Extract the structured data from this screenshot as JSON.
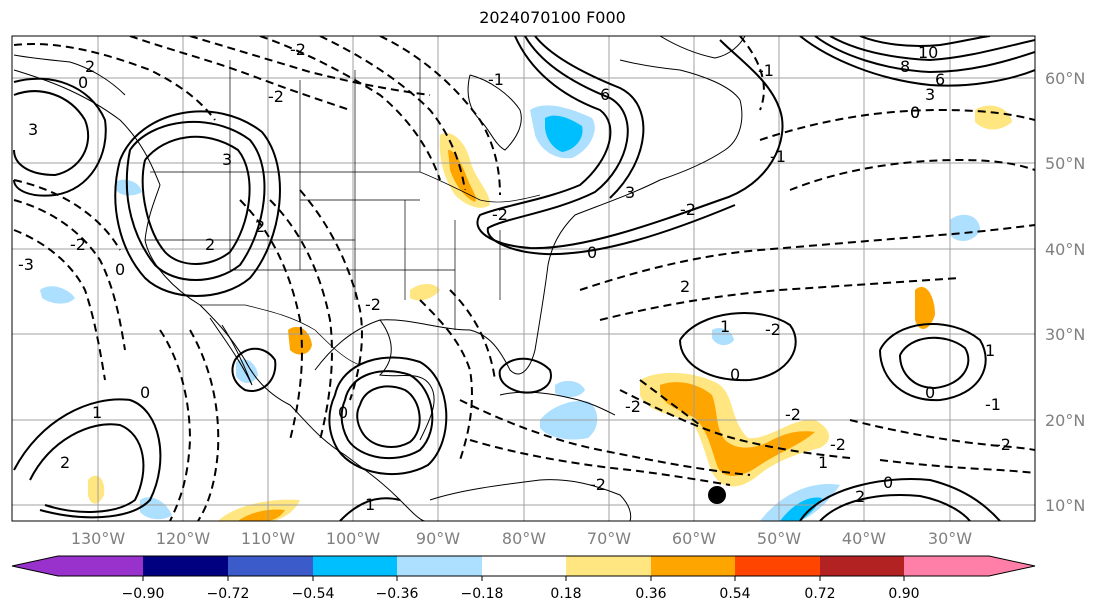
{
  "title": "2024070100 F000",
  "colors": {
    "land_border": "#000000",
    "gridline": "#a0a0a0",
    "axis_label": "#808080"
  },
  "lat_labels": [
    "60°N",
    "50°N",
    "40°N",
    "30°N",
    "20°N",
    "10°N"
  ],
  "lon_labels": [
    "130°W",
    "120°W",
    "110°W",
    "100°W",
    "90°W",
    "80°W",
    "70°W",
    "60°W",
    "50°W",
    "40°W",
    "30°W"
  ],
  "colorbar": {
    "colors": [
      "#9932CC",
      "#000080",
      "#3A5BC9",
      "#00BFFF",
      "#ADDFFF",
      "#FFFFFF",
      "#FFE680",
      "#FFA500",
      "#FF4500",
      "#B22222",
      "#FF7FA8"
    ],
    "tick_labels": [
      "−0.90",
      "−0.72",
      "−0.54",
      "−0.36",
      "−0.18",
      "0.18",
      "0.36",
      "0.54",
      "0.72",
      "0.90"
    ]
  },
  "contour_labels": [
    "2",
    "0",
    "-2",
    "3",
    "6",
    "10",
    "8",
    "6",
    "3",
    "0",
    "-2",
    "3",
    "2",
    "-3",
    "0",
    "-2",
    "1",
    "2",
    "-2",
    "1",
    "0",
    "1",
    "0",
    "-2",
    "2",
    "-2",
    "1",
    "-2",
    "0",
    "3",
    "0",
    "-1",
    "-2",
    "2",
    "0",
    "0",
    "1",
    "-2",
    "-1",
    "-2",
    "-1",
    "-2",
    "-1",
    "0",
    "2",
    "-2"
  ],
  "marker": {
    "name": "point-marker"
  }
}
